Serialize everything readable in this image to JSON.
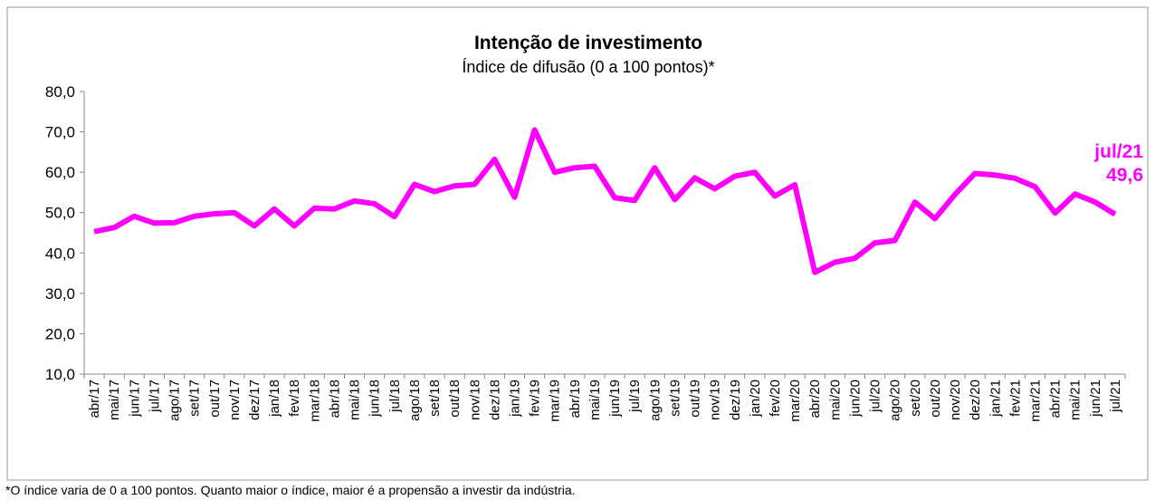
{
  "chart_data": {
    "type": "line",
    "title": "Intenção de investimento",
    "subtitle": "Índice de difusão (0 a 100 pontos)*",
    "footnote": "*O índice varia de 0 a 100 pontos. Quanto maior o índice, maior é a propensão a investir da indústria.",
    "annotation": "jul/21",
    "categories": [
      "abr/17",
      "mai/17",
      "jun/17",
      "jul/17",
      "ago/17",
      "set/17",
      "out/17",
      "nov/17",
      "dez/17",
      "jan/18",
      "fev/18",
      "mar/18",
      "abr/18",
      "mai/18",
      "jun/18",
      "jul/18",
      "ago/18",
      "set/18",
      "out/18",
      "nov/18",
      "dez/18",
      "jan/19",
      "fev/19",
      "mar/19",
      "abr/19",
      "mai/19",
      "jun/19",
      "jul/19",
      "ago/19",
      "set/19",
      "out/19",
      "nov/19",
      "dez/19",
      "jan/20",
      "fev/20",
      "mar/20",
      "abr/20",
      "mai/20",
      "jun/20",
      "jul/20",
      "ago/20",
      "set/20",
      "out/20",
      "nov/20",
      "dez/20",
      "jan/21",
      "fev/21",
      "mar/21",
      "abr/21",
      "mai/21",
      "jun/21",
      "jul/21"
    ],
    "values": [
      45.3,
      46.3,
      49.1,
      47.4,
      47.5,
      49.1,
      49.7,
      50.0,
      46.7,
      50.9,
      46.7,
      51.1,
      50.9,
      52.9,
      52.2,
      49.0,
      57.0,
      55.2,
      56.6,
      57.0,
      63.2,
      53.8,
      70.5,
      60.0,
      61.1,
      61.5,
      53.7,
      53.0,
      61.1,
      53.2,
      58.6,
      55.9,
      59.0,
      60.0,
      54.1,
      56.9,
      35.2,
      37.7,
      38.7,
      42.5,
      43.1,
      52.6,
      48.5,
      54.5,
      59.7,
      59.3,
      58.5,
      56.4,
      49.9,
      54.6,
      52.6,
      49.6
    ],
    "value_labels": [
      null,
      null,
      null,
      null,
      null,
      null,
      null,
      null,
      null,
      null,
      null,
      null,
      null,
      null,
      null,
      null,
      null,
      null,
      null,
      null,
      null,
      null,
      null,
      null,
      null,
      null,
      null,
      null,
      null,
      null,
      null,
      null,
      null,
      null,
      null,
      null,
      null,
      null,
      null,
      null,
      null,
      null,
      null,
      null,
      null,
      null,
      null,
      null,
      null,
      null,
      null,
      "49,6"
    ],
    "color": "#ff00ff",
    "ylim": [
      10,
      80
    ],
    "yticks": [
      {
        "value": 10,
        "label": "10,0"
      },
      {
        "value": 20,
        "label": "20,0"
      },
      {
        "value": 30,
        "label": "30,0"
      },
      {
        "value": 40,
        "label": "40,0"
      },
      {
        "value": 50,
        "label": "50,0"
      },
      {
        "value": 60,
        "label": "60,0"
      },
      {
        "value": 70,
        "label": "70,0"
      },
      {
        "value": 80,
        "label": "80,0"
      }
    ],
    "grid": false
  }
}
